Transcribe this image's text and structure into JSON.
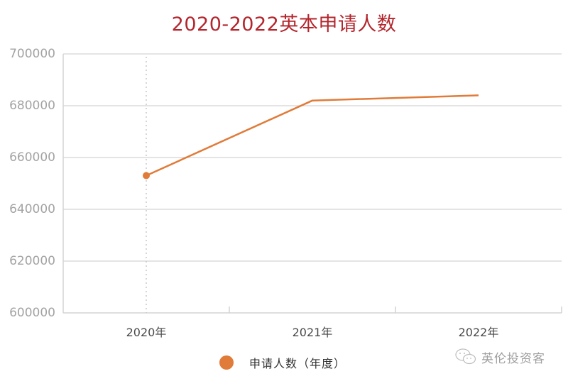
{
  "chart_data": {
    "type": "line",
    "title": "2020-2022英本申请人数",
    "categories": [
      "2020年",
      "2021年",
      "2022年"
    ],
    "series": [
      {
        "name": "申请人数（年度）",
        "values": [
          653000,
          682000,
          684000
        ],
        "color": "#e07b39"
      }
    ],
    "xlabel": "",
    "ylabel": "",
    "ylim": [
      600000,
      700000
    ],
    "yticks": [
      "700000",
      "680000",
      "660000",
      "640000",
      "620000",
      "600000"
    ],
    "grid": true,
    "legend_position": "bottom"
  },
  "legend": {
    "label": "申请人数（年度）",
    "color": "#e07b39"
  },
  "watermark": {
    "text": "英伦投资客",
    "icon": "wechat-icon"
  },
  "colors": {
    "title": "#b3262d",
    "line": "#e07b39",
    "grid": "#dcdcdc",
    "axis_text": "#a3a3a3"
  }
}
